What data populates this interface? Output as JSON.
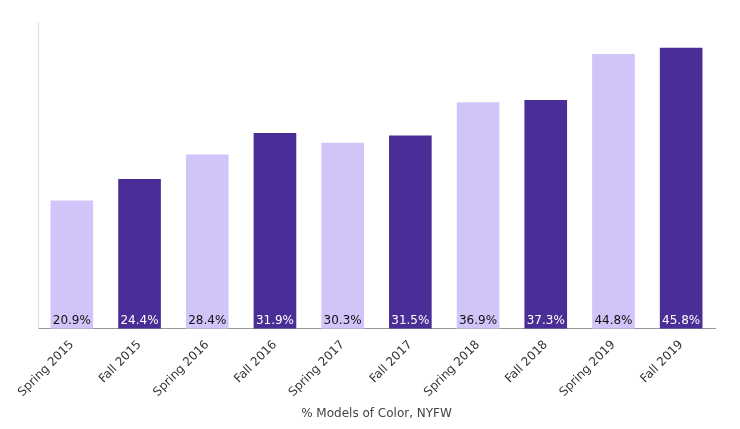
{
  "chart_data": {
    "type": "bar",
    "categories": [
      "Spring 2015",
      "Fall 2015",
      "Spring 2016",
      "Fall 2016",
      "Spring 2017",
      "Fall 2017",
      "Spring 2018",
      "Fall 2018",
      "Spring 2019",
      "Fall 2019"
    ],
    "values": [
      20.9,
      24.4,
      28.4,
      31.9,
      30.3,
      31.5,
      36.9,
      37.3,
      44.8,
      45.8
    ],
    "value_labels": [
      "20.9%",
      "24.4%",
      "28.4%",
      "31.9%",
      "30.3%",
      "31.5%",
      "36.9%",
      "37.3%",
      "44.8%",
      "45.8%"
    ],
    "colors": [
      "#d1c4f9",
      "#4a2d96",
      "#d1c4f9",
      "#4a2d96",
      "#d1c4f9",
      "#4a2d96",
      "#d1c4f9",
      "#4a2d96",
      "#d1c4f9",
      "#4a2d96"
    ],
    "x_label": "% Models of Color, NYFW",
    "ylim": [
      0,
      50
    ],
    "yticks": [],
    "grid": false,
    "data_labels": true,
    "tick_labels": "x"
  }
}
